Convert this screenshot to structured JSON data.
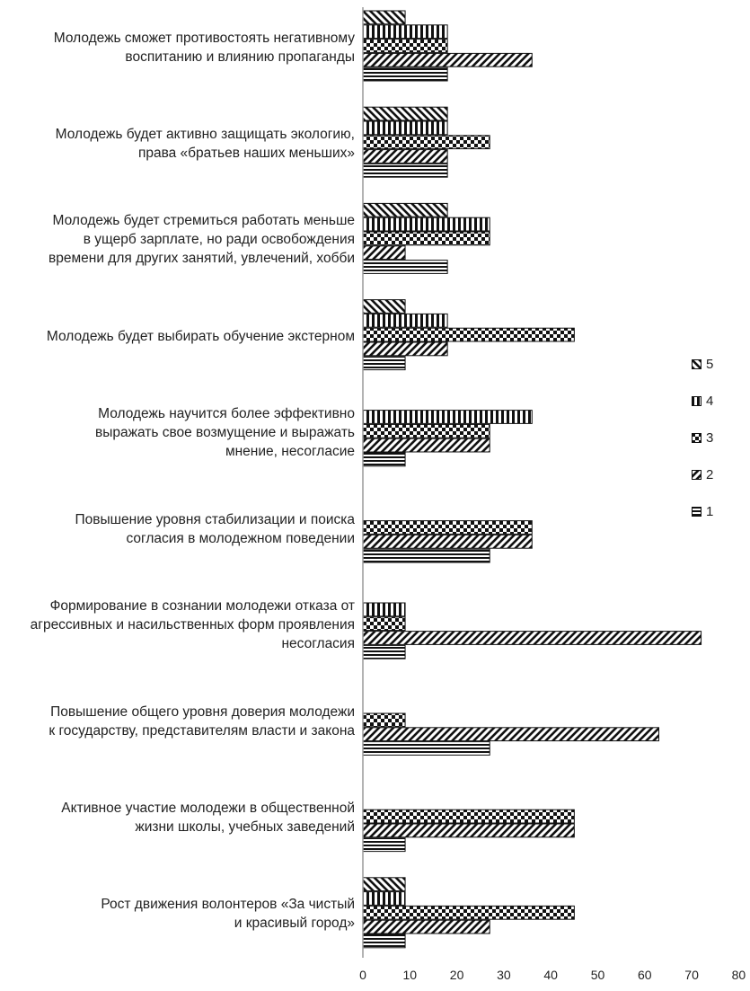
{
  "chart_data": {
    "type": "bar",
    "orientation": "horizontal",
    "categories": [
      "Молодежь сможет противостоять негативному\nвоспитанию и влиянию пропаганды",
      "Молодежь будет активно защищать экологию,\nправа  «братьев наших меньших»",
      "Молодежь будет стремиться работать меньше\nв ущерб зарплате, но ради освобождения\nвремени для других занятий, увлечений, хобби",
      "Молодежь будет выбирать обучение экстерном",
      "Молодежь научится более эффективно\nвыражать  свое возмущение и выражать\nмнение, несогласие",
      "Повышение уровня стабилизации и поиска\nсогласия в молодежном поведении",
      "Формирование в сознании молодежи отказа от\nагрессивных и насильственных форм проявления\nнесогласия",
      "Повышение общего уровня доверия молодежи\nк государству, представителям власти и закона",
      "Активное участие молодежи в общественной\nжизни школы, учебных заведений",
      "Рост движения волонтеров «За чистый\nи красивый город»"
    ],
    "series": [
      {
        "name": "5",
        "values": [
          9,
          18,
          18,
          9,
          0,
          0,
          0,
          0,
          0,
          9
        ]
      },
      {
        "name": "4",
        "values": [
          18,
          18,
          27,
          18,
          36,
          0,
          9,
          0,
          0,
          9
        ]
      },
      {
        "name": "3",
        "values": [
          18,
          27,
          27,
          45,
          27,
          36,
          9,
          9,
          45,
          45
        ]
      },
      {
        "name": "2",
        "values": [
          36,
          18,
          9,
          18,
          27,
          36,
          72,
          63,
          45,
          27
        ]
      },
      {
        "name": "1",
        "values": [
          18,
          18,
          18,
          9,
          9,
          27,
          9,
          27,
          9,
          9
        ]
      }
    ],
    "legend_order": [
      "5",
      "4",
      "3",
      "2",
      "1"
    ],
    "xlim": [
      0,
      80
    ],
    "xticks": [
      "0",
      "10",
      "20",
      "30",
      "40",
      "50",
      "60",
      "70",
      "80"
    ],
    "grid": false,
    "legend_position": "right",
    "xlabel": "",
    "ylabel": "",
    "title": ""
  }
}
